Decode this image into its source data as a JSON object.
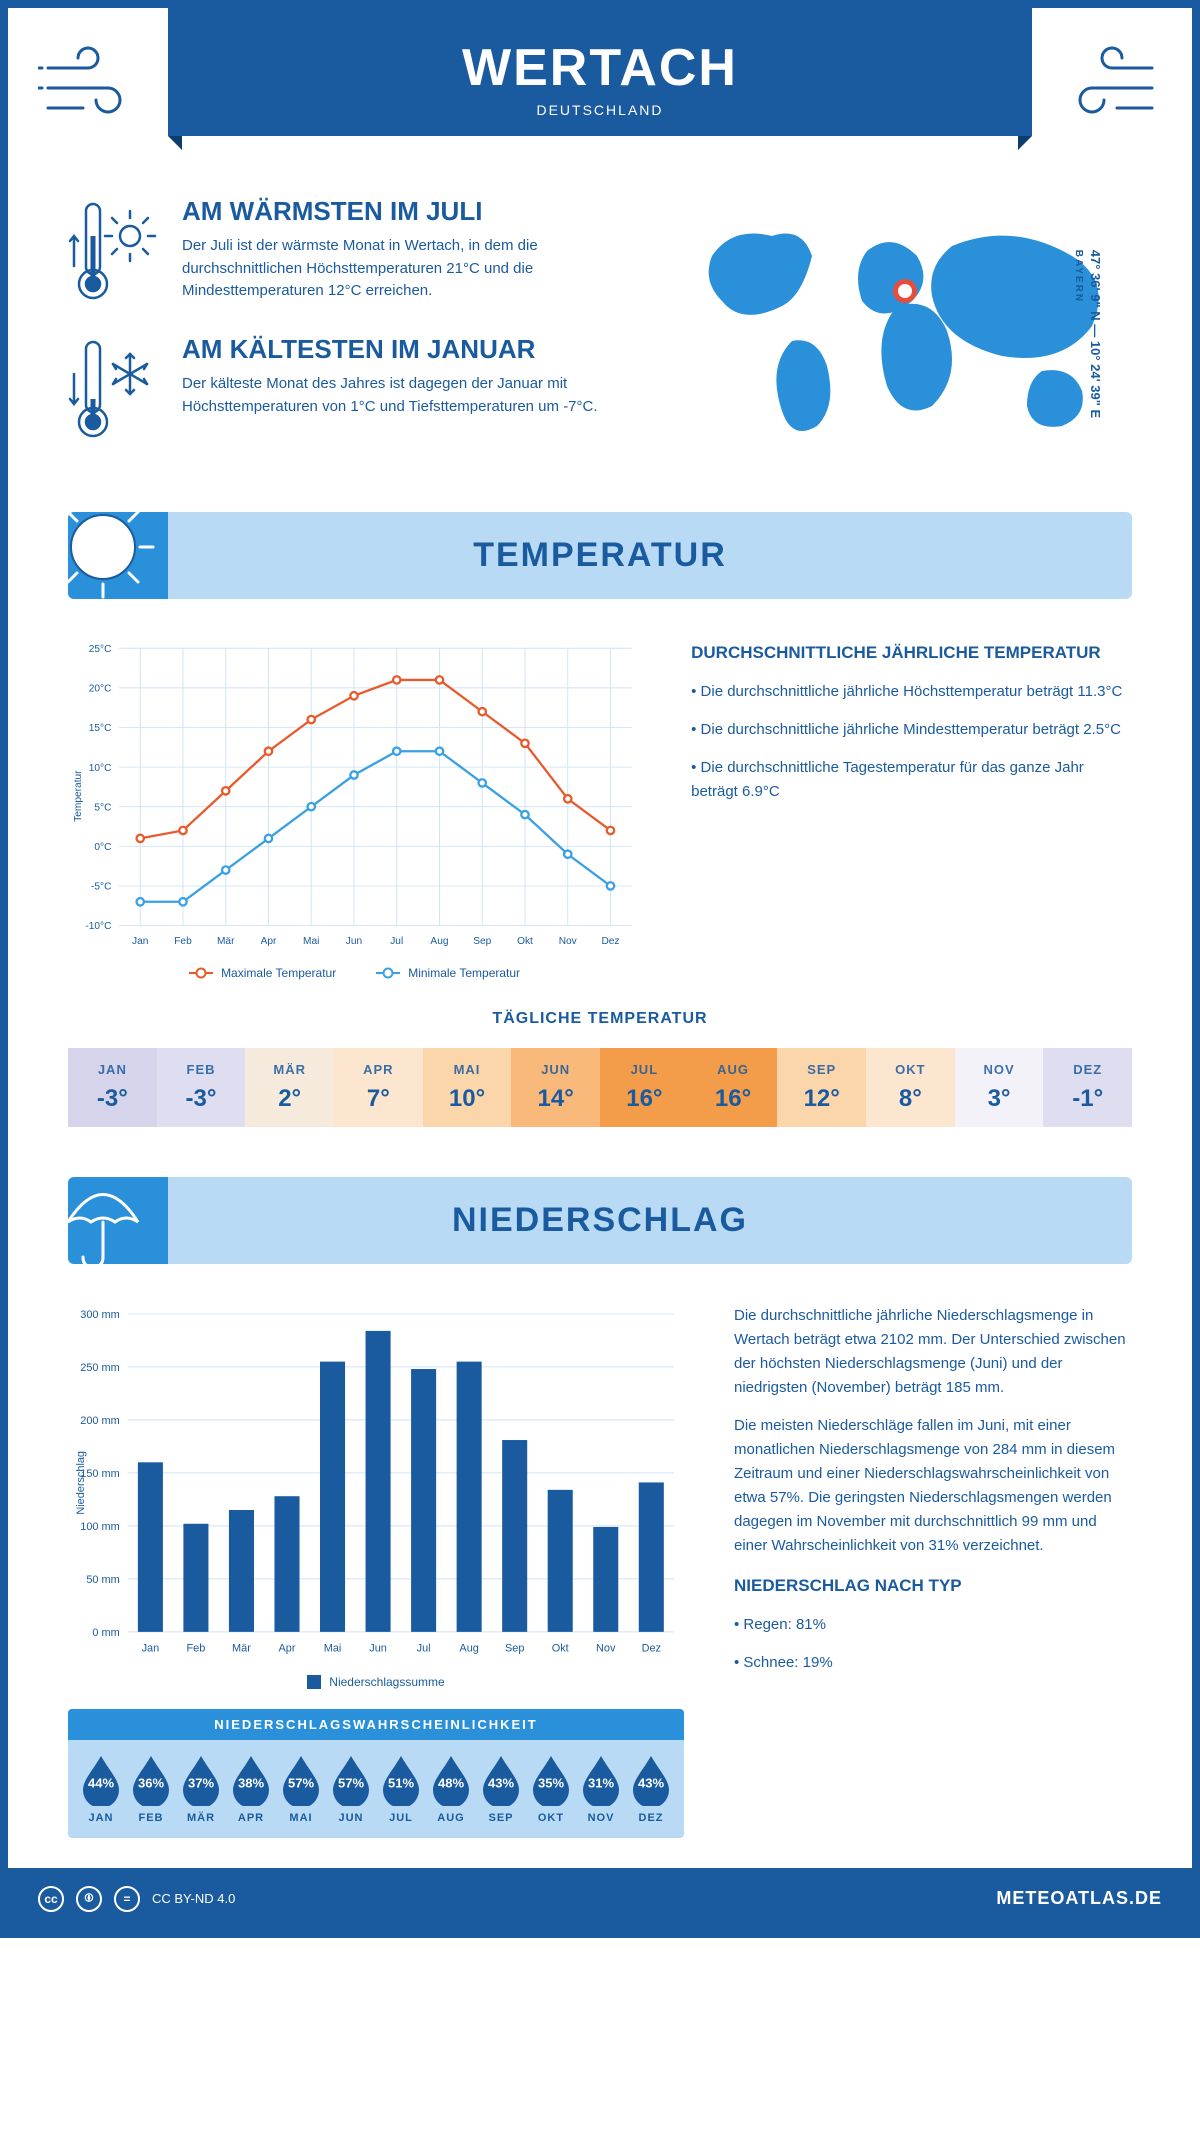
{
  "header": {
    "title": "WERTACH",
    "subtitle": "DEUTSCHLAND"
  },
  "coords": {
    "lat": "47° 36' 9\" N",
    "lon": "10° 24' 39\" E",
    "region": "BAYERN"
  },
  "marker": {
    "left_pct": 48,
    "top_pct": 30
  },
  "facts": {
    "warm": {
      "title": "AM WÄRMSTEN IM JULI",
      "text": "Der Juli ist der wärmste Monat in Wertach, in dem die durchschnittlichen Höchsttemperaturen 21°C und die Mindesttemperaturen 12°C erreichen."
    },
    "cold": {
      "title": "AM KÄLTESTEN IM JANUAR",
      "text": "Der kälteste Monat des Jahres ist dagegen der Januar mit Höchsttemperaturen von 1°C und Tiefsttemperaturen um -7°C."
    }
  },
  "sections": {
    "temperature": "TEMPERATUR",
    "precipitation": "NIEDERSCHLAG"
  },
  "temp_chart": {
    "type": "line",
    "months": [
      "Jan",
      "Feb",
      "Mär",
      "Apr",
      "Mai",
      "Jun",
      "Jul",
      "Aug",
      "Sep",
      "Okt",
      "Nov",
      "Dez"
    ],
    "max_series": [
      1,
      2,
      7,
      12,
      16,
      19,
      21,
      21,
      17,
      13,
      6,
      2
    ],
    "min_series": [
      -7,
      -7,
      -3,
      1,
      5,
      9,
      12,
      12,
      8,
      4,
      -1,
      -5
    ],
    "max_color": "#e85a2c",
    "min_color": "#3aa0e6",
    "grid_color": "#cfe3f5",
    "axis_color": "#1a5a9e",
    "ylabel": "Temperatur",
    "ymin": -10,
    "ymax": 25,
    "ystep": 5,
    "legend_max": "Maximale Temperatur",
    "legend_min": "Minimale Temperatur"
  },
  "temp_desc": {
    "heading": "DURCHSCHNITTLICHE JÄHRLICHE TEMPERATUR",
    "b1": "• Die durchschnittliche jährliche Höchsttemperatur beträgt 11.3°C",
    "b2": "• Die durchschnittliche jährliche Mindesttemperatur beträgt 2.5°C",
    "b3": "• Die durchschnittliche Tagestemperatur für das ganze Jahr beträgt 6.9°C"
  },
  "daily_temp": {
    "title": "TÄGLICHE TEMPERATUR",
    "months": [
      "JAN",
      "FEB",
      "MÄR",
      "APR",
      "MAI",
      "JUN",
      "JUL",
      "AUG",
      "SEP",
      "OKT",
      "NOV",
      "DEZ"
    ],
    "values": [
      "-3°",
      "-3°",
      "2°",
      "7°",
      "10°",
      "14°",
      "16°",
      "16°",
      "12°",
      "8°",
      "3°",
      "-1°"
    ],
    "bg_colors": [
      "#d6d4ea",
      "#dfdef0",
      "#f6eadd",
      "#fce6cf",
      "#fbd6ab",
      "#f9b97a",
      "#f39c4a",
      "#f39c4a",
      "#fbd6ab",
      "#fce6cf",
      "#f3f2f8",
      "#dfdef0"
    ],
    "text_color": "#1a5a9e"
  },
  "precip_chart": {
    "type": "bar",
    "months": [
      "Jan",
      "Feb",
      "Mär",
      "Apr",
      "Mai",
      "Jun",
      "Jul",
      "Aug",
      "Sep",
      "Okt",
      "Nov",
      "Dez"
    ],
    "values": [
      160,
      102,
      115,
      128,
      255,
      284,
      248,
      255,
      181,
      134,
      99,
      141
    ],
    "bar_color": "#1a5a9e",
    "grid_color": "#cfe3f5",
    "ylabel": "Niederschlag",
    "ymin": 0,
    "ymax": 300,
    "ystep": 50,
    "legend": "Niederschlagssumme"
  },
  "precip_desc": {
    "p1": "Die durchschnittliche jährliche Niederschlagsmenge in Wertach beträgt etwa 2102 mm. Der Unterschied zwischen der höchsten Niederschlagsmenge (Juni) und der niedrigsten (November) beträgt 185 mm.",
    "p2": "Die meisten Niederschläge fallen im Juni, mit einer monatlichen Niederschlagsmenge von 284 mm in diesem Zeitraum und einer Niederschlagswahrscheinlichkeit von etwa 57%. Die geringsten Niederschlagsmengen werden dagegen im November mit durchschnittlich 99 mm und einer Wahrscheinlichkeit von 31% verzeichnet.",
    "h2": "NIEDERSCHLAG NACH TYP",
    "b1": "• Regen: 81%",
    "b2": "• Schnee: 19%"
  },
  "prob": {
    "title": "NIEDERSCHLAGSWAHRSCHEINLICHKEIT",
    "months": [
      "JAN",
      "FEB",
      "MÄR",
      "APR",
      "MAI",
      "JUN",
      "JUL",
      "AUG",
      "SEP",
      "OKT",
      "NOV",
      "DEZ"
    ],
    "values": [
      "44%",
      "36%",
      "37%",
      "38%",
      "57%",
      "57%",
      "51%",
      "48%",
      "43%",
      "35%",
      "31%",
      "43%"
    ],
    "drop_color": "#1a5a9e"
  },
  "footer": {
    "license": "CC BY-ND 4.0",
    "site": "METEOATLAS.DE"
  },
  "colors": {
    "primary": "#1a5a9e",
    "light": "#b9daf5",
    "mid": "#2a90d9"
  }
}
